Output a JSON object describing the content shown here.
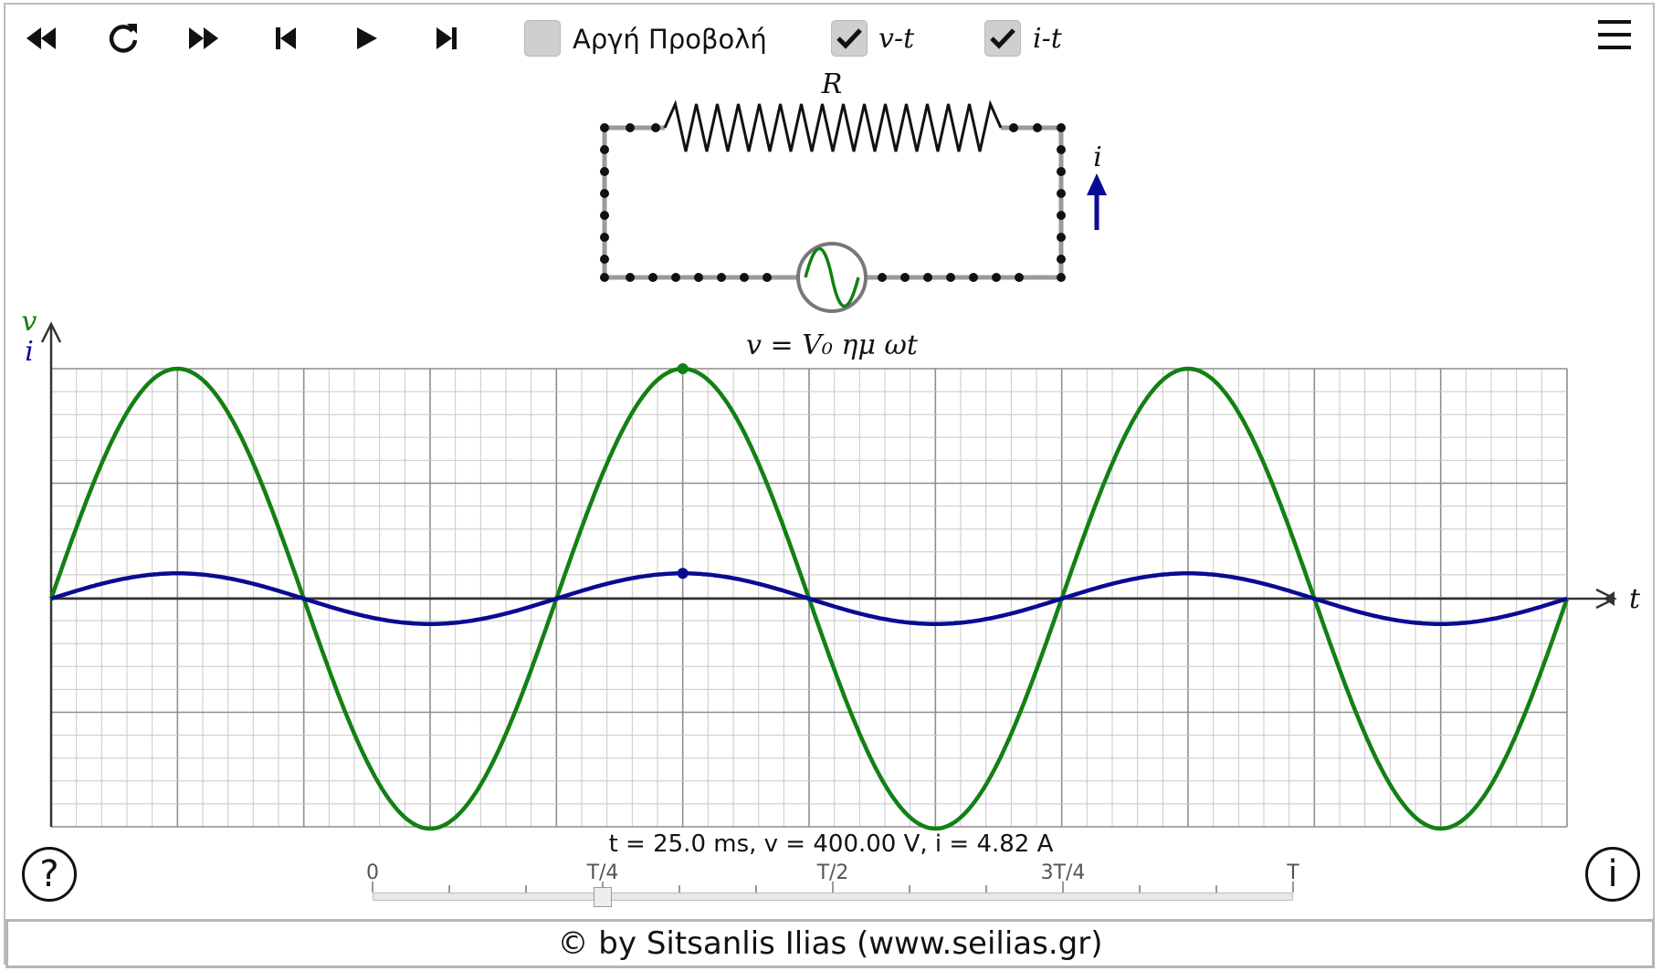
{
  "toolbar": {
    "buttons": [
      {
        "name": "rewind-button",
        "icon": "rewind-icon"
      },
      {
        "name": "reset-button",
        "icon": "reload-icon"
      },
      {
        "name": "fast-forward-button",
        "icon": "fast-forward-icon"
      },
      {
        "name": "step-back-button",
        "icon": "step-back-icon"
      },
      {
        "name": "play-button",
        "icon": "play-icon"
      },
      {
        "name": "step-forward-button",
        "icon": "step-forward-icon"
      }
    ],
    "slow_motion": {
      "label": "Αργή Προβολή",
      "checked": false
    },
    "vt": {
      "label": "v-t",
      "checked": true
    },
    "it": {
      "label": "i-t",
      "checked": true
    },
    "menu_icon": "hamburger-menu-icon"
  },
  "circuit": {
    "resistor_label": "R",
    "current_label": "i",
    "source_label": "v = V₀ ημ ωt"
  },
  "graph": {
    "y_labels": {
      "v": "v",
      "i": "i"
    },
    "x_label": "t",
    "colors": {
      "voltage": "#138013",
      "current": "#0a0a94",
      "grid_major": "#8e8e8e",
      "grid_minor": "#c8c8c8"
    },
    "cycles": 3,
    "voltage_amplitude_fraction": 1.0,
    "current_amplitude_fraction": 0.11,
    "marker_cycle_fraction": 0.25
  },
  "readout": {
    "text": "t = 25.0 ms, v = 400.00 V, i = 4.82 A"
  },
  "slider": {
    "tick_labels": [
      "0",
      "T/4",
      "T/2",
      "3T/4",
      "T"
    ],
    "value_fraction": 0.25
  },
  "help_button": {
    "label": "?"
  },
  "info_button": {
    "label": "i"
  },
  "footer": {
    "text": "© by Sitsanlis Ilias (www.seilias.gr)"
  }
}
